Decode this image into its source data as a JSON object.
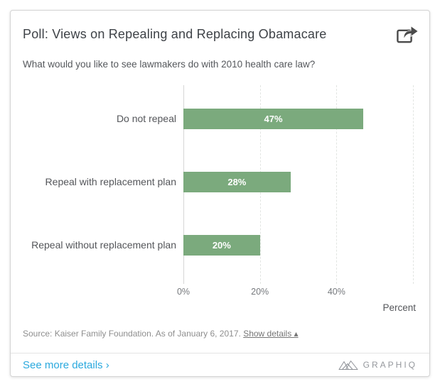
{
  "header": {
    "title": "Poll: Views on Repealing and Replacing Obamacare",
    "subtitle": "What would you like to see lawmakers do with 2010 health care law?"
  },
  "chart_data": {
    "type": "bar",
    "orientation": "horizontal",
    "categories": [
      "Do not repeal",
      "Repeal with replacement plan",
      "Repeal without replacement plan"
    ],
    "values": [
      47,
      28,
      20
    ],
    "value_labels": [
      "47%",
      "28%",
      "20%"
    ],
    "title": "Poll: Views on Repealing and Replacing Obamacare",
    "subtitle": "What would you like to see lawmakers do with 2010 health care law?",
    "xlabel": "Percent",
    "ylabel": "",
    "x_ticks": [
      "0%",
      "20%",
      "40%"
    ],
    "x_tick_values": [
      0,
      20,
      40
    ],
    "xlim": [
      0,
      60
    ],
    "bar_color": "#7baa7d",
    "grid": "vertical-dashed",
    "legend": "none"
  },
  "footer": {
    "source_text": "Source: Kaiser Family Foundation. As of January 6, 2017.",
    "show_details_label": "Show details ▴",
    "see_more_label": "See more details ›",
    "brand": "GRAPHIQ"
  },
  "colors": {
    "bar_green": "#7baa7d",
    "link_blue": "#2aa9de",
    "title_gray": "#3e4247",
    "brand_gray": "#94979c"
  }
}
